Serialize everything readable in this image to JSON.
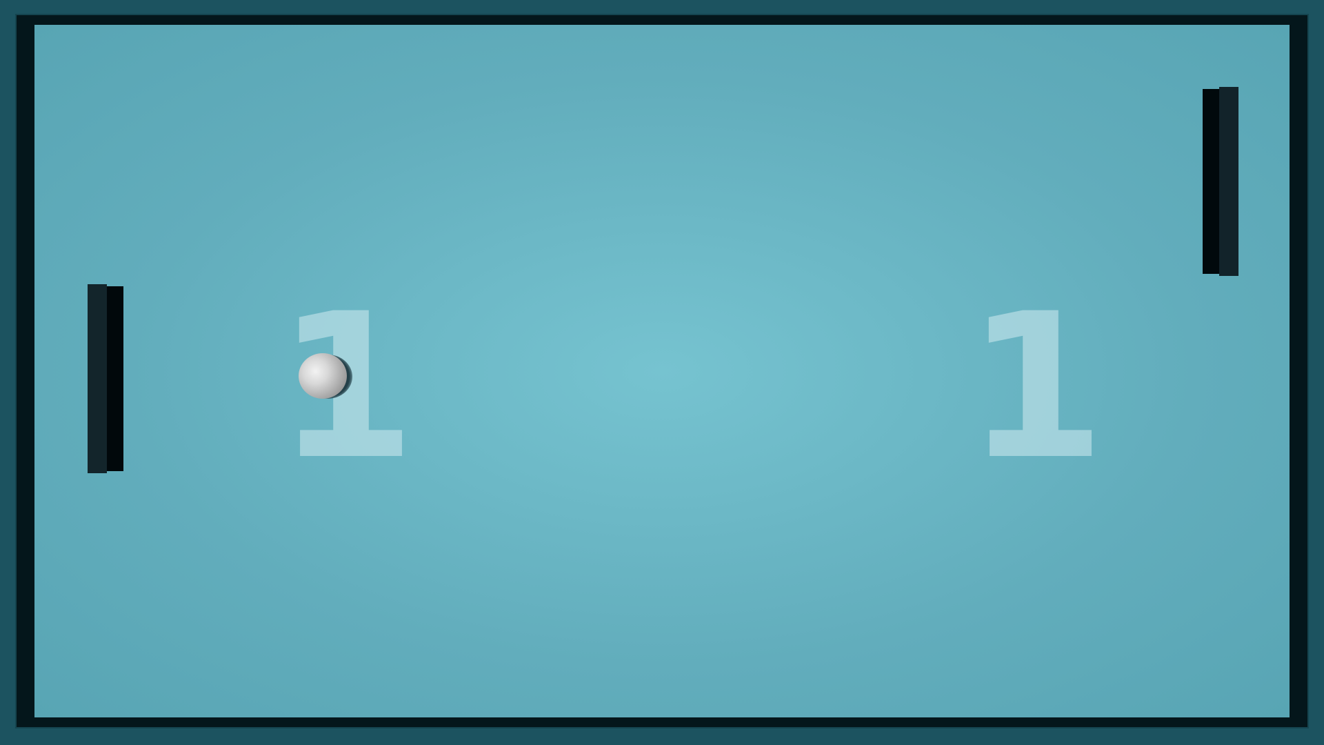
{
  "scoreboard": {
    "left_score": "1",
    "right_score": "1"
  },
  "colors": {
    "field": "#6cb8c6",
    "frame": "#04161b",
    "background": "#1c5360",
    "paddle": "#13252b",
    "ball": "#d8d8d8",
    "score_text": "#c8e4ea"
  },
  "icons": {
    "left_paddle": "paddle-left",
    "right_paddle": "paddle-right",
    "ball": "ball"
  }
}
